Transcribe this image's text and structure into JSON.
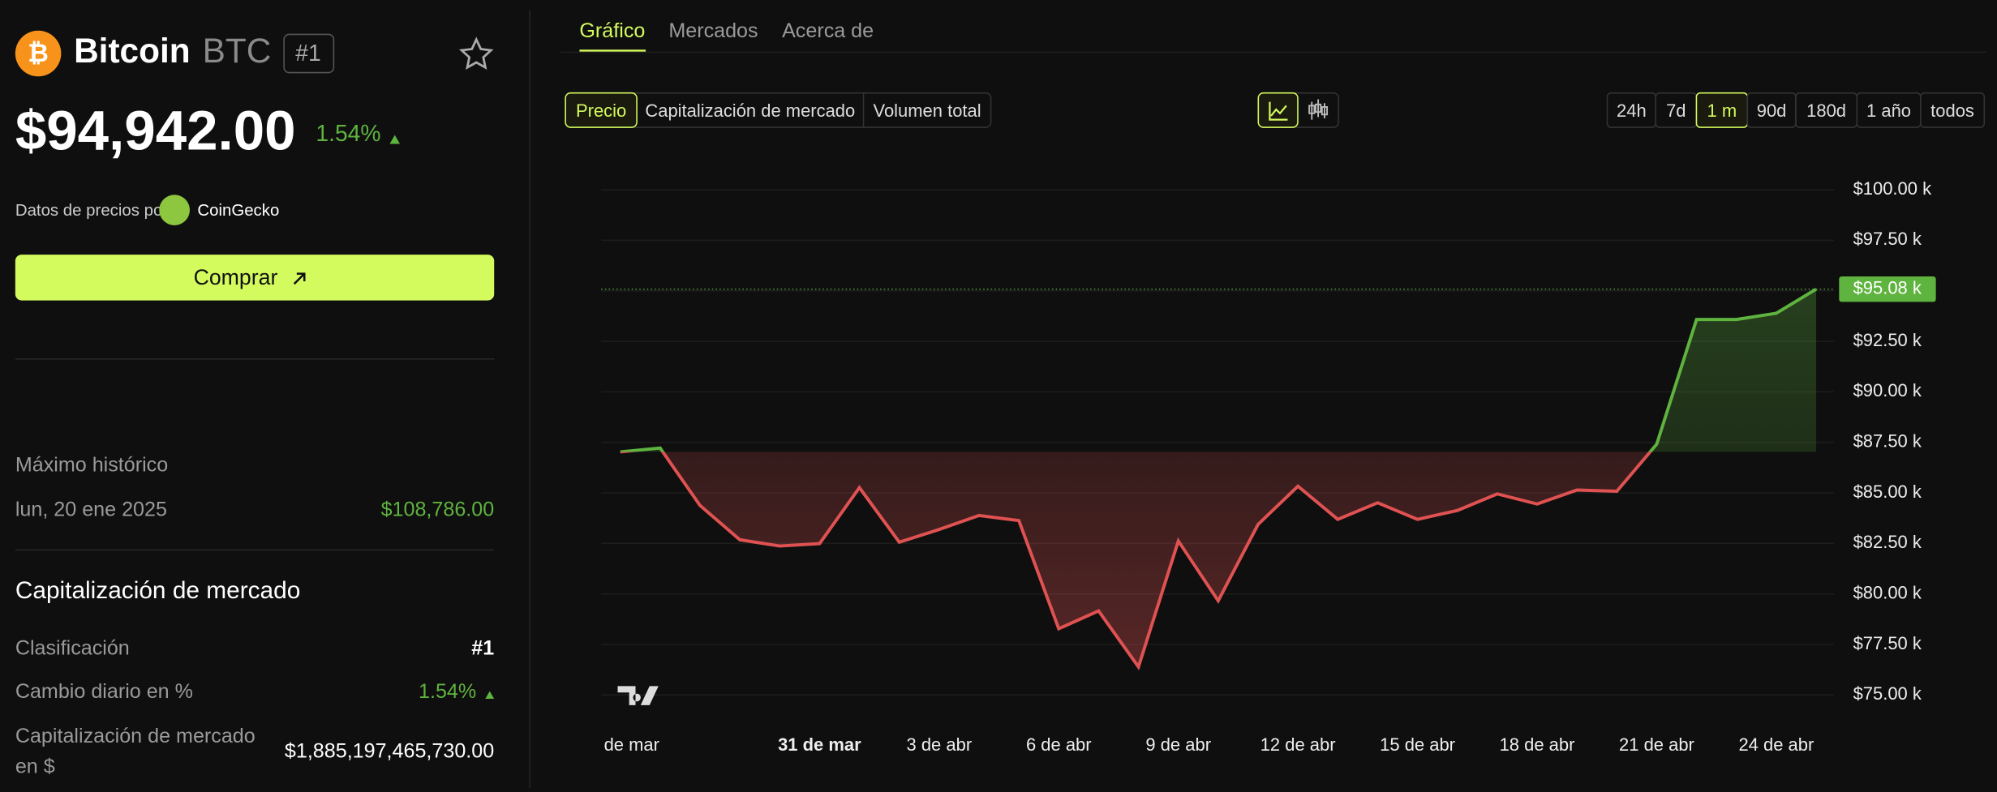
{
  "header": {
    "name": "Bitcoin",
    "symbol": "BTC",
    "rank": "#1",
    "price": "$94,942.00",
    "change": "1.54%",
    "source_prefix": "Datos de precios por",
    "source": "CoinGecko",
    "buy": "Comprar"
  },
  "stats": {
    "ath_label": "Máximo histórico",
    "ath_date": "lun, 20 ene 2025",
    "ath_value": "$108,786.00",
    "section": "Capitalización de mercado",
    "rows": [
      [
        "Clasificación",
        "#1"
      ],
      [
        "Cambio diario en %",
        "1.54%"
      ],
      [
        "Capitalización de mercado",
        "en $",
        "$1,885,197,465,730.00"
      ]
    ]
  },
  "tabs": [
    "Gráfico",
    "Mercados",
    "Acerca de"
  ],
  "metrics": [
    "Precio",
    "Capitalización de mercado",
    "Volumen total"
  ],
  "ranges": [
    "24h",
    "7d",
    "1 m",
    "90d",
    "180d",
    "1 año",
    "todos"
  ],
  "chart_data": {
    "type": "line",
    "categories": [
      null,
      "de mar",
      null,
      null,
      null,
      "31 de mar",
      null,
      null,
      "3 de abr",
      null,
      null,
      "6 de abr",
      null,
      null,
      "9 de abr",
      null,
      null,
      "12 de abr",
      null,
      null,
      "15 de abr",
      null,
      null,
      "18 de abr",
      null,
      null,
      "21 de abr",
      null,
      null,
      "24 de abr",
      null
    ],
    "values": [
      87030,
      87220,
      84380,
      82680,
      82370,
      82490,
      85260,
      82560,
      83190,
      83880,
      83630,
      78280,
      79160,
      76390,
      82620,
      79660,
      83440,
      85330,
      83690,
      84510,
      83690,
      84130,
      84950,
      84450,
      85140,
      85080,
      87410,
      93580,
      93580,
      93890,
      95080
    ],
    "last_label": "$95.08 k",
    "up_color": "#5fb33f",
    "down_color": "#e05252",
    "ylim": [
      73500,
      101250
    ],
    "yticks": [
      {
        "value": 75000,
        "label": "$75.00 k"
      },
      {
        "value": 77500,
        "label": "$77.50 k"
      },
      {
        "value": 80000,
        "label": "$80.00 k"
      },
      {
        "value": 82500,
        "label": "$82.50 k"
      },
      {
        "value": 85000,
        "label": "$85.00 k"
      },
      {
        "value": 87500,
        "label": "$87.50 k"
      },
      {
        "value": 90000,
        "label": "$90.00 k"
      },
      {
        "value": 92500,
        "label": "$92.50 k"
      },
      {
        "value": 95000,
        "label": "$95.00 k"
      },
      {
        "value": 97500,
        "label": "$97.50 k"
      },
      {
        "value": 100000,
        "label": "$100.00 k"
      }
    ],
    "grid": true
  }
}
